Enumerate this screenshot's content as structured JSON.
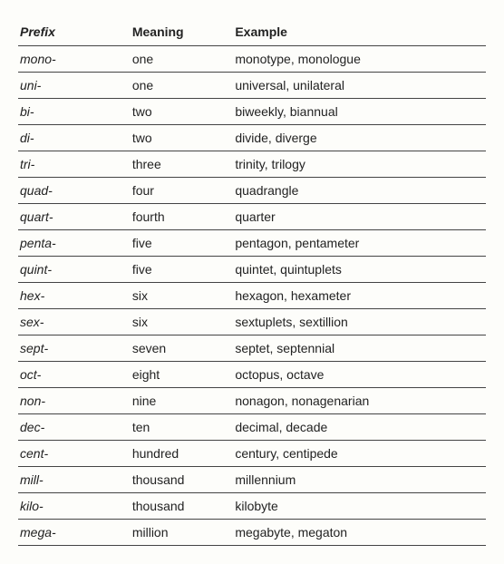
{
  "columns": [
    "Prefix",
    "Meaning",
    "Example"
  ],
  "rows": [
    {
      "prefix": "mono-",
      "meaning": "one",
      "example": "monotype, monologue"
    },
    {
      "prefix": "uni-",
      "meaning": "one",
      "example": "universal, unilateral"
    },
    {
      "prefix": "bi-",
      "meaning": "two",
      "example": "biweekly, biannual"
    },
    {
      "prefix": "di-",
      "meaning": "two",
      "example": "divide, diverge"
    },
    {
      "prefix": "tri-",
      "meaning": "three",
      "example": "trinity, trilogy"
    },
    {
      "prefix": "quad-",
      "meaning": "four",
      "example": "quadrangle"
    },
    {
      "prefix": "quart-",
      "meaning": "fourth",
      "example": "quarter"
    },
    {
      "prefix": "penta-",
      "meaning": "five",
      "example": "pentagon, pentameter"
    },
    {
      "prefix": "quint-",
      "meaning": "five",
      "example": "quintet, quintuplets"
    },
    {
      "prefix": "hex-",
      "meaning": "six",
      "example": "hexagon, hexameter"
    },
    {
      "prefix": "sex-",
      "meaning": "six",
      "example": "sextuplets, sextillion"
    },
    {
      "prefix": "sept-",
      "meaning": "seven",
      "example": "septet, septennial"
    },
    {
      "prefix": "oct-",
      "meaning": "eight",
      "example": "octopus, octave"
    },
    {
      "prefix": "non-",
      "meaning": "nine",
      "example": "nonagon, nonagenarian"
    },
    {
      "prefix": "dec-",
      "meaning": "ten",
      "example": "decimal, decade"
    },
    {
      "prefix": "cent-",
      "meaning": "hundred",
      "example": "century, centipede"
    },
    {
      "prefix": "mill-",
      "meaning": "thousand",
      "example": "millennium"
    },
    {
      "prefix": "kilo-",
      "meaning": "thousand",
      "example": "kilobyte"
    },
    {
      "prefix": "mega-",
      "meaning": "million",
      "example": "megabyte, megaton"
    }
  ],
  "column_widths": [
    "24%",
    "22%",
    "54%"
  ],
  "font_family": "Verdana, Geneva, sans-serif",
  "font_size_pt": 14,
  "text_color": "#222",
  "background_color": "#fdfdfa",
  "border_color": "#444",
  "prefix_italic": true
}
